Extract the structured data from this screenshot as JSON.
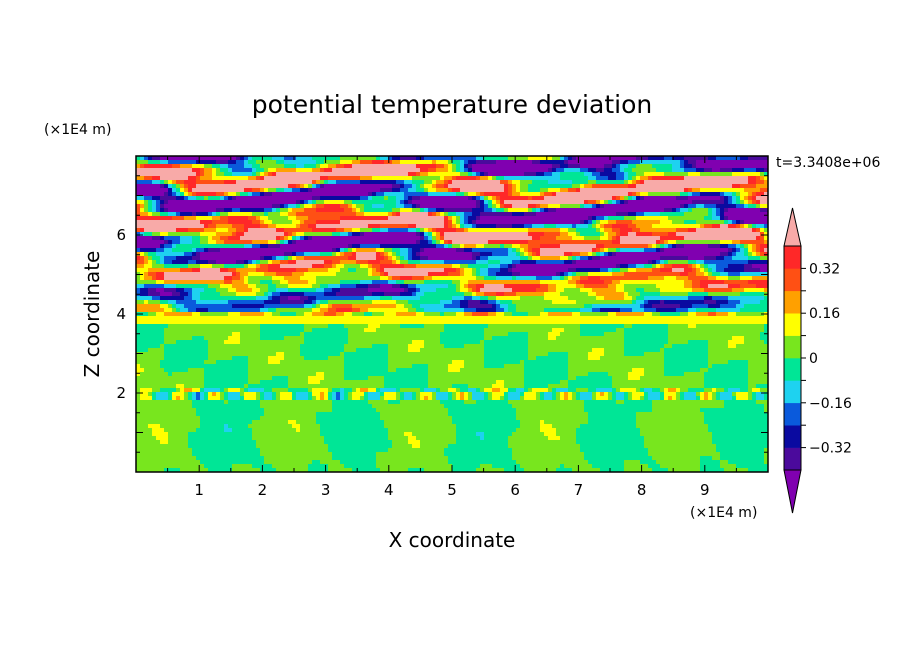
{
  "chart_data": {
    "type": "heatmap",
    "title": "potential temperature deviation",
    "xlabel": "X coordinate",
    "ylabel": "Z coordinate",
    "x_unit": "(×1E4 m)",
    "y_unit": "(×1E4 m)",
    "time_label": "t=3.3408e+06",
    "xlim": [
      0,
      10
    ],
    "ylim": [
      0,
      8
    ],
    "x_ticks": [
      "1",
      "2",
      "3",
      "4",
      "5",
      "6",
      "7",
      "8",
      "9"
    ],
    "y_ticks": [
      "2",
      "4",
      "6"
    ],
    "colorbar": {
      "labels": [
        "0.32",
        "0.16",
        "0",
        "−0.16",
        "−0.32"
      ],
      "label_values": [
        0.32,
        0.16,
        0,
        -0.16,
        -0.32
      ],
      "levels": [
        -0.4,
        -0.32,
        -0.24,
        -0.16,
        -0.08,
        0,
        0.08,
        0.16,
        0.24,
        0.32,
        0.4
      ],
      "colors": [
        "#8000b0",
        "#4b0a9c",
        "#0a0aa0",
        "#0a5adc",
        "#1ed2f0",
        "#00e696",
        "#78e61e",
        "#ffff00",
        "#ffa000",
        "#ff5014",
        "#ff2828",
        "#f8aaa8"
      ],
      "extend": "both"
    },
    "regions": [
      {
        "zone": "z 0–2 (lower layer)",
        "dominant_range": [
          -0.08,
          0.08
        ],
        "colors": [
          "#78e61e",
          "#00e696"
        ]
      },
      {
        "zone": "z 2–3.8 (middle layer)",
        "dominant_range": [
          -0.08,
          0.08
        ],
        "colors": [
          "#78e61e",
          "#00e696"
        ]
      },
      {
        "zone": "z 3.8–4 (transition band)",
        "dominant_range": [
          0.08,
          0.16
        ],
        "colors": [
          "#ffff00"
        ]
      },
      {
        "zone": "z 4–8 (upper layer)",
        "dominant_range": [
          -0.4,
          0.4
        ],
        "colors": [
          "#8000b0",
          "#f8aaa8"
        ]
      }
    ]
  }
}
